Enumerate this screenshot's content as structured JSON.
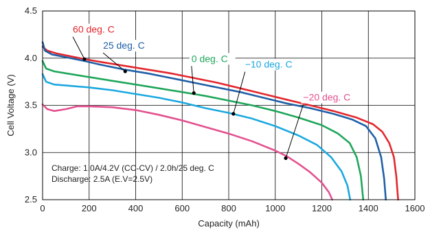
{
  "chart_data": {
    "type": "line",
    "xlabel": "Capacity (mAh)",
    "ylabel": "Cell Voltage (V)",
    "xlim": [
      0,
      1600
    ],
    "ylim": [
      2.5,
      4.5
    ],
    "xticks": [
      0,
      200,
      400,
      600,
      800,
      1000,
      1200,
      1400,
      1600
    ],
    "yticks": [
      2.5,
      3.0,
      3.5,
      4.0,
      4.5
    ],
    "grid": true,
    "notes": [
      "Charge: 1.0A/4.2V (CC-CV) / 2.0h/25 deg. C",
      "Discharge: 2.5A (E.V=2.5V)"
    ],
    "series": [
      {
        "name": "60 deg. C",
        "color": "#e3262d",
        "x": [
          0,
          20,
          60,
          120,
          180,
          250,
          350,
          450,
          550,
          650,
          750,
          850,
          950,
          1050,
          1150,
          1250,
          1350,
          1420,
          1460,
          1490,
          1510,
          1520,
          1528
        ],
        "y": [
          4.12,
          4.08,
          4.05,
          4.02,
          3.99,
          3.96,
          3.92,
          3.88,
          3.84,
          3.79,
          3.74,
          3.68,
          3.62,
          3.56,
          3.5,
          3.44,
          3.37,
          3.3,
          3.22,
          3.1,
          2.95,
          2.75,
          2.5
        ]
      },
      {
        "name": "25 deg. C",
        "color": "#1f5fa6",
        "x": [
          0,
          10,
          40,
          100,
          180,
          250,
          350,
          450,
          550,
          650,
          750,
          850,
          950,
          1050,
          1150,
          1250,
          1330,
          1390,
          1430,
          1455,
          1468,
          1475
        ],
        "y": [
          4.17,
          4.08,
          4.04,
          4.01,
          3.97,
          3.93,
          3.88,
          3.84,
          3.79,
          3.74,
          3.69,
          3.64,
          3.58,
          3.52,
          3.47,
          3.41,
          3.35,
          3.28,
          3.15,
          2.95,
          2.72,
          2.5
        ]
      },
      {
        "name": "0 deg. C",
        "color": "#1ea65a",
        "x": [
          0,
          15,
          50,
          100,
          200,
          300,
          400,
          500,
          600,
          650,
          700,
          800,
          900,
          1000,
          1100,
          1200,
          1270,
          1320,
          1350,
          1368,
          1378
        ],
        "y": [
          3.97,
          3.89,
          3.86,
          3.84,
          3.8,
          3.76,
          3.72,
          3.68,
          3.64,
          3.62,
          3.6,
          3.55,
          3.5,
          3.44,
          3.37,
          3.29,
          3.2,
          3.1,
          2.95,
          2.75,
          2.5
        ]
      },
      {
        "name": "−10 deg. C",
        "color": "#1aa8df",
        "x": [
          0,
          15,
          50,
          100,
          200,
          300,
          400,
          500,
          600,
          700,
          800,
          850,
          900,
          1000,
          1100,
          1180,
          1240,
          1285,
          1310,
          1322
        ],
        "y": [
          3.83,
          3.75,
          3.72,
          3.71,
          3.69,
          3.66,
          3.62,
          3.58,
          3.53,
          3.47,
          3.42,
          3.39,
          3.36,
          3.28,
          3.18,
          3.08,
          2.95,
          2.8,
          2.65,
          2.5
        ]
      },
      {
        "name": "−20 deg. C",
        "color": "#e3508f",
        "x": [
          0,
          20,
          50,
          100,
          150,
          200,
          300,
          400,
          500,
          600,
          700,
          800,
          900,
          1000,
          1050,
          1100,
          1150,
          1200,
          1230,
          1245
        ],
        "y": [
          3.51,
          3.46,
          3.44,
          3.46,
          3.49,
          3.49,
          3.48,
          3.45,
          3.4,
          3.34,
          3.27,
          3.2,
          3.12,
          3.02,
          2.96,
          2.88,
          2.79,
          2.68,
          2.58,
          2.5
        ]
      }
    ],
    "series_labels": [
      {
        "name": "60 deg. C",
        "x": 130,
        "y": 4.27,
        "target_x": 180,
        "target_y": 3.99,
        "color": "#e3262d"
      },
      {
        "name": "25 deg. C",
        "x": 260,
        "y": 4.1,
        "target_x": 355,
        "target_y": 3.86,
        "color": "#1f5fa6"
      },
      {
        "name": "0 deg. C",
        "x": 640,
        "y": 3.96,
        "target_x": 650,
        "target_y": 3.63,
        "color": "#1ea65a"
      },
      {
        "name": "−10 deg. C",
        "x": 870,
        "y": 3.9,
        "target_x": 820,
        "target_y": 3.41,
        "color": "#1aa8df"
      },
      {
        "name": "−20 deg. C",
        "x": 1120,
        "y": 3.55,
        "target_x": 1045,
        "target_y": 2.94,
        "color": "#e3508f"
      }
    ]
  }
}
